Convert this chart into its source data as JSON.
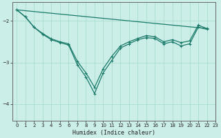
{
  "xlabel": "Humidex (Indice chaleur)",
  "bg_color": "#cceee8",
  "line_color": "#1a7a6a",
  "grid_color": "#aaddcc",
  "xlim": [
    -0.5,
    23
  ],
  "ylim": [
    -4.4,
    -1.55
  ],
  "yticks": [
    -4,
    -3,
    -2
  ],
  "xticks": [
    0,
    1,
    2,
    3,
    4,
    5,
    6,
    7,
    8,
    9,
    10,
    11,
    12,
    13,
    14,
    15,
    16,
    17,
    18,
    19,
    20,
    21,
    22,
    23
  ],
  "series_main1": {
    "x": [
      0,
      1,
      2,
      3,
      4,
      5,
      6,
      7,
      8,
      9,
      10,
      11,
      12,
      13,
      14,
      15,
      16,
      17,
      18,
      19,
      20,
      21,
      22
    ],
    "y": [
      -1.73,
      -1.9,
      -2.15,
      -2.32,
      -2.45,
      -2.52,
      -2.58,
      -3.05,
      -3.35,
      -3.75,
      -3.25,
      -2.95,
      -2.65,
      -2.55,
      -2.45,
      -2.4,
      -2.42,
      -2.55,
      -2.5,
      -2.6,
      -2.55,
      -2.15,
      -2.2
    ]
  },
  "series_main2": {
    "x": [
      0,
      1,
      2,
      3,
      4,
      5,
      6,
      7,
      8,
      9,
      10,
      11,
      12,
      13,
      14,
      15,
      16,
      17,
      18,
      19,
      20,
      21,
      22
    ],
    "y": [
      -1.73,
      -1.9,
      -2.15,
      -2.3,
      -2.43,
      -2.5,
      -2.55,
      -2.97,
      -3.25,
      -3.6,
      -3.15,
      -2.85,
      -2.6,
      -2.5,
      -2.42,
      -2.35,
      -2.38,
      -2.5,
      -2.45,
      -2.52,
      -2.48,
      -2.1,
      -2.18
    ]
  },
  "series_line": {
    "x": [
      0,
      22
    ],
    "y": [
      -1.73,
      -2.18
    ]
  }
}
